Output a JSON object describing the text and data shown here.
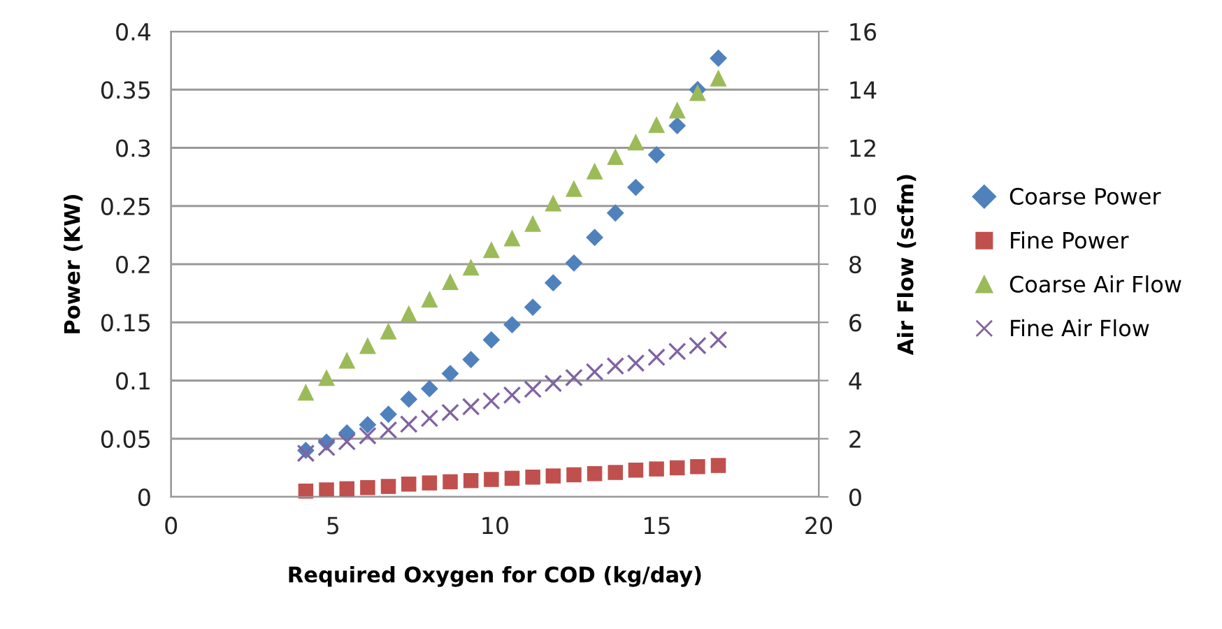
{
  "chart_data": {
    "type": "scatter",
    "xlabel": "Required Oxygen for COD (kg/day)",
    "ylabel": "Power (KW)",
    "y2label": "Air Flow (scfm)",
    "x": [
      4.16,
      4.8,
      5.43,
      6.07,
      6.71,
      7.34,
      7.98,
      8.62,
      9.26,
      9.89,
      10.53,
      11.17,
      11.8,
      12.44,
      13.08,
      13.72,
      14.35,
      14.99,
      15.63,
      16.26,
      16.9
    ],
    "series": [
      {
        "name": "Coarse Power",
        "color": "#4f81bd",
        "marker": "diamond",
        "values": [
          0.04,
          0.047,
          0.055,
          0.062,
          0.071,
          0.084,
          0.093,
          0.106,
          0.118,
          0.135,
          0.148,
          0.163,
          0.184,
          0.201,
          0.223,
          0.244,
          0.266,
          0.294,
          0.319,
          0.35,
          0.377
        ]
      },
      {
        "name": "Fine Power",
        "color": "#c0504d",
        "marker": "square",
        "values": [
          0.005,
          0.006,
          0.007,
          0.008,
          0.009,
          0.011,
          0.012,
          0.013,
          0.014,
          0.015,
          0.016,
          0.017,
          0.018,
          0.019,
          0.02,
          0.021,
          0.023,
          0.024,
          0.025,
          0.026,
          0.027
        ]
      },
      {
        "name": "Coarse Air Flow",
        "color": "#9bbb59",
        "marker": "triangle",
        "axis": "y2",
        "values": [
          3.6,
          4.1,
          4.7,
          5.2,
          5.7,
          6.3,
          6.8,
          7.4,
          7.9,
          8.5,
          8.9,
          9.4,
          10.1,
          10.6,
          11.2,
          11.7,
          12.2,
          12.8,
          13.3,
          13.9,
          14.4
        ]
      },
      {
        "name": "Fine Air Flow",
        "color": "#8064a2",
        "marker": "cross",
        "axis": "y2",
        "values": [
          1.5,
          1.7,
          1.9,
          2.1,
          2.3,
          2.5,
          2.7,
          2.9,
          3.1,
          3.3,
          3.5,
          3.7,
          3.9,
          4.1,
          4.3,
          4.5,
          4.6,
          4.8,
          5.0,
          5.2,
          5.4
        ]
      }
    ],
    "xlim": [
      0,
      20
    ],
    "xticks": [
      0,
      5,
      10,
      15,
      20
    ],
    "ylim": [
      0,
      0.4
    ],
    "yticks": [
      {
        "value": 0,
        "label": "0"
      },
      {
        "value": 0.05,
        "label": "0.05"
      },
      {
        "value": 0.1,
        "label": "0.1"
      },
      {
        "value": 0.15,
        "label": "0.15"
      },
      {
        "value": 0.2,
        "label": "0.2"
      },
      {
        "value": 0.25,
        "label": "0.25"
      },
      {
        "value": 0.3,
        "label": "0.3"
      },
      {
        "value": 0.35,
        "label": "0.35"
      },
      {
        "value": 0.4,
        "label": "0.4"
      }
    ],
    "y2lim": [
      0,
      16
    ],
    "y2ticks": [
      0,
      2,
      4,
      6,
      8,
      10,
      12,
      14,
      16
    ],
    "grid": "y",
    "legend": "right"
  }
}
